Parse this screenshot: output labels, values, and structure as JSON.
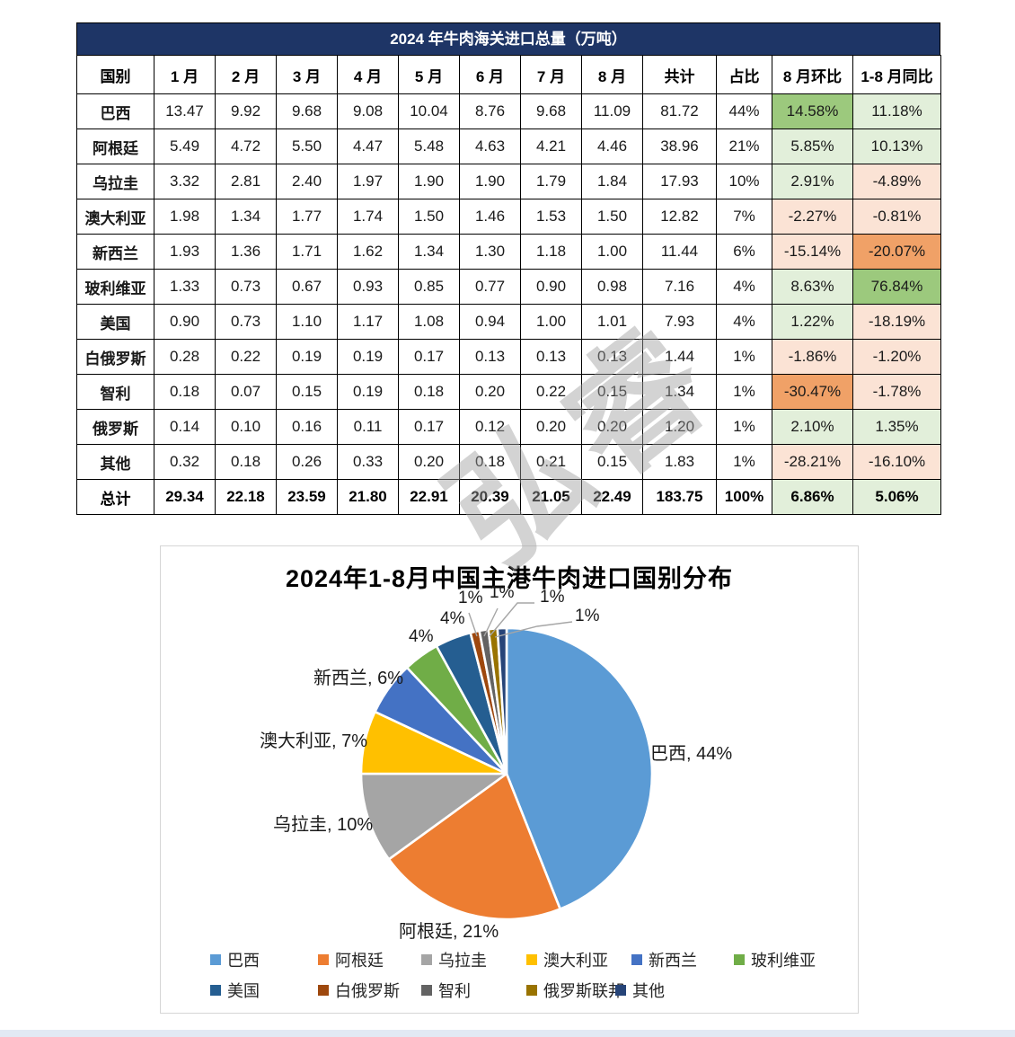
{
  "table": {
    "title": "2024 年牛肉海关进口总量（万吨）",
    "columns": [
      "国别",
      "1 月",
      "2 月",
      "3 月",
      "4 月",
      "5 月",
      "6 月",
      "7 月",
      "8 月",
      "共计",
      "占比",
      "8 月环比",
      "1-8 月同比"
    ],
    "rows": [
      {
        "name": "巴西",
        "values": [
          "13.47",
          "9.92",
          "9.68",
          "9.08",
          "10.04",
          "8.76",
          "9.68",
          "11.09"
        ],
        "total": "81.72",
        "share": "44%",
        "mom": "14.58%",
        "yoy": "11.18%",
        "mom_bg": "green_strong",
        "yoy_bg": "green_light",
        "bold": false
      },
      {
        "name": "阿根廷",
        "values": [
          "5.49",
          "4.72",
          "5.50",
          "4.47",
          "5.48",
          "4.63",
          "4.21",
          "4.46"
        ],
        "total": "38.96",
        "share": "21%",
        "mom": "5.85%",
        "yoy": "10.13%",
        "mom_bg": "green_light",
        "yoy_bg": "green_light",
        "bold": false
      },
      {
        "name": "乌拉圭",
        "values": [
          "3.32",
          "2.81",
          "2.40",
          "1.97",
          "1.90",
          "1.90",
          "1.79",
          "1.84"
        ],
        "total": "17.93",
        "share": "10%",
        "mom": "2.91%",
        "yoy": "-4.89%",
        "mom_bg": "green_light",
        "yoy_bg": "red_light",
        "bold": false
      },
      {
        "name": "澳大利亚",
        "values": [
          "1.98",
          "1.34",
          "1.77",
          "1.74",
          "1.50",
          "1.46",
          "1.53",
          "1.50"
        ],
        "total": "12.82",
        "share": "7%",
        "mom": "-2.27%",
        "yoy": "-0.81%",
        "mom_bg": "red_light",
        "yoy_bg": "red_light",
        "bold": false
      },
      {
        "name": "新西兰",
        "values": [
          "1.93",
          "1.36",
          "1.71",
          "1.62",
          "1.34",
          "1.30",
          "1.18",
          "1.00"
        ],
        "total": "11.44",
        "share": "6%",
        "mom": "-15.14%",
        "yoy": "-20.07%",
        "mom_bg": "red_light",
        "yoy_bg": "orange_strong",
        "bold": false
      },
      {
        "name": "玻利维亚",
        "values": [
          "1.33",
          "0.73",
          "0.67",
          "0.93",
          "0.85",
          "0.77",
          "0.90",
          "0.98"
        ],
        "total": "7.16",
        "share": "4%",
        "mom": "8.63%",
        "yoy": "76.84%",
        "mom_bg": "green_light",
        "yoy_bg": "green_strong",
        "bold": false
      },
      {
        "name": "美国",
        "values": [
          "0.90",
          "0.73",
          "1.10",
          "1.17",
          "1.08",
          "0.94",
          "1.00",
          "1.01"
        ],
        "total": "7.93",
        "share": "4%",
        "mom": "1.22%",
        "yoy": "-18.19%",
        "mom_bg": "green_light",
        "yoy_bg": "red_light",
        "bold": false
      },
      {
        "name": "白俄罗斯",
        "values": [
          "0.28",
          "0.22",
          "0.19",
          "0.19",
          "0.17",
          "0.13",
          "0.13",
          "0.13"
        ],
        "total": "1.44",
        "share": "1%",
        "mom": "-1.86%",
        "yoy": "-1.20%",
        "mom_bg": "red_light",
        "yoy_bg": "red_light",
        "bold": false
      },
      {
        "name": "智利",
        "values": [
          "0.18",
          "0.07",
          "0.15",
          "0.19",
          "0.18",
          "0.20",
          "0.22",
          "0.15"
        ],
        "total": "1.34",
        "share": "1%",
        "mom": "-30.47%",
        "yoy": "-1.78%",
        "mom_bg": "orange_strong",
        "yoy_bg": "red_light",
        "bold": false
      },
      {
        "name": "俄罗斯",
        "values": [
          "0.14",
          "0.10",
          "0.16",
          "0.11",
          "0.17",
          "0.12",
          "0.20",
          "0.20"
        ],
        "total": "1.20",
        "share": "1%",
        "mom": "2.10%",
        "yoy": "1.35%",
        "mom_bg": "green_light",
        "yoy_bg": "green_light",
        "bold": false
      },
      {
        "name": "其他",
        "values": [
          "0.32",
          "0.18",
          "0.26",
          "0.33",
          "0.20",
          "0.18",
          "0.21",
          "0.15"
        ],
        "total": "1.83",
        "share": "1%",
        "mom": "-28.21%",
        "yoy": "-16.10%",
        "mom_bg": "red_light",
        "yoy_bg": "red_light",
        "bold": false
      },
      {
        "name": "总计",
        "values": [
          "29.34",
          "22.18",
          "23.59",
          "21.80",
          "22.91",
          "20.39",
          "21.05",
          "22.49"
        ],
        "total": "183.75",
        "share": "100%",
        "mom": "6.86%",
        "yoy": "5.06%",
        "mom_bg": "green_light",
        "yoy_bg": "green_light",
        "bold": true
      }
    ]
  },
  "colors": {
    "header_bar": "#1E3566",
    "cell": {
      "green_strong": "#9CC97D",
      "green_light": "#E2EFDA",
      "red_light": "#FBE3D5",
      "orange_strong": "#F0A167",
      "none": "#FFFFFF"
    },
    "leader_line": "#A6A6A6"
  },
  "watermark": {
    "text": "弘睿"
  },
  "chart_data": {
    "type": "pie",
    "title": "2024年1-8月中国主港牛肉进口国别分布",
    "unit": "percent of Jan-Aug 2024 beef imports",
    "start_angle_deg": 0,
    "direction": "clockwise",
    "legend_position": "bottom",
    "slices": [
      {
        "name": "巴西",
        "value": 44,
        "label": "巴西, 44%",
        "color": "#5B9BD5"
      },
      {
        "name": "阿根廷",
        "value": 21,
        "label": "阿根廷, 21%",
        "color": "#ED7D31"
      },
      {
        "name": "乌拉圭",
        "value": 10,
        "label": "乌拉圭, 10%",
        "color": "#A5A5A5"
      },
      {
        "name": "澳大利亚",
        "value": 7,
        "label": "澳大利亚, 7%",
        "color": "#FFC000"
      },
      {
        "name": "新西兰",
        "value": 6,
        "label": "新西兰, 6%",
        "color": "#4472C4"
      },
      {
        "name": "玻利维亚",
        "value": 4,
        "label": "4%",
        "color": "#70AD47"
      },
      {
        "name": "美国",
        "value": 4,
        "label": "4%",
        "color": "#255E91"
      },
      {
        "name": "白俄罗斯",
        "value": 1,
        "label": "1%",
        "color": "#9E480E"
      },
      {
        "name": "智利",
        "value": 1,
        "label": "1%",
        "color": "#636363"
      },
      {
        "name": "俄罗斯联邦",
        "value": 1,
        "label": "1%",
        "color": "#997300"
      },
      {
        "name": "其他",
        "value": 1,
        "label": "1%",
        "color": "#264478"
      }
    ]
  }
}
